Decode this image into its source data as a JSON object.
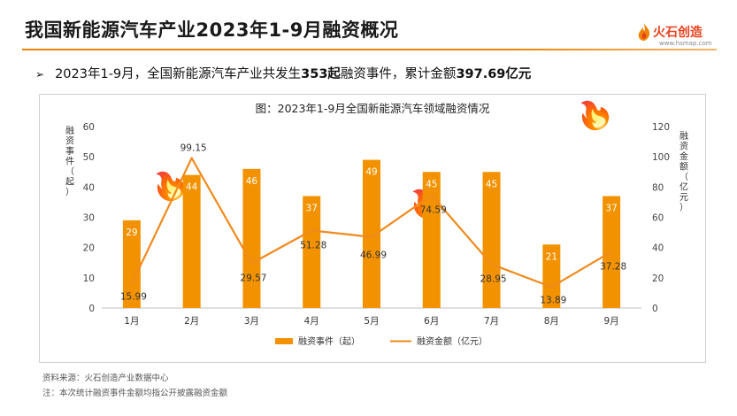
{
  "header": {
    "title": "我国新能源汽车产业2023年1-9月融资概况",
    "logo_text": "火石创造",
    "logo_url": "www.hsmap.com"
  },
  "summary": {
    "bullet": "➢",
    "prefix": "2023年1-9月，全国新能源汽车产业共发生",
    "events": "353起",
    "middle": "融资事件，累计金额",
    "amount": "397.69亿元"
  },
  "colors": {
    "bar": "#f39200",
    "line": "#f08a1c",
    "accent": "#f08300"
  },
  "chart_data": {
    "type": "bar",
    "title": "图：2023年1-9月全国新能源汽车领域融资情况",
    "categories": [
      "1月",
      "2月",
      "3月",
      "4月",
      "5月",
      "6月",
      "7月",
      "8月",
      "9月"
    ],
    "series": [
      {
        "name": "融资事件（起）",
        "type": "bar",
        "axis": "left",
        "values": [
          29,
          44,
          46,
          37,
          49,
          45,
          45,
          21,
          37
        ]
      },
      {
        "name": "融资金额（亿元）",
        "type": "line",
        "axis": "right",
        "values": [
          15.99,
          99.15,
          29.57,
          51.28,
          46.99,
          74.59,
          28.95,
          13.89,
          37.28
        ]
      }
    ],
    "ylabel_left": "融资事件（起）",
    "ylabel_right": "融资金额（亿元）",
    "ylim_left": [
      0,
      60
    ],
    "ylim_right": [
      0,
      120
    ],
    "yticks_left": [
      "0",
      "10",
      "20",
      "30",
      "40",
      "50",
      "60"
    ],
    "yticks_right": [
      "0",
      "20",
      "40",
      "60",
      "80",
      "100",
      "120"
    ],
    "grid": false,
    "legend_position": "bottom"
  },
  "footer": {
    "source": "资料来源：火石创造产业数据中心",
    "note": "注：本次统计融资事件金额均指公开披露融资金额"
  }
}
